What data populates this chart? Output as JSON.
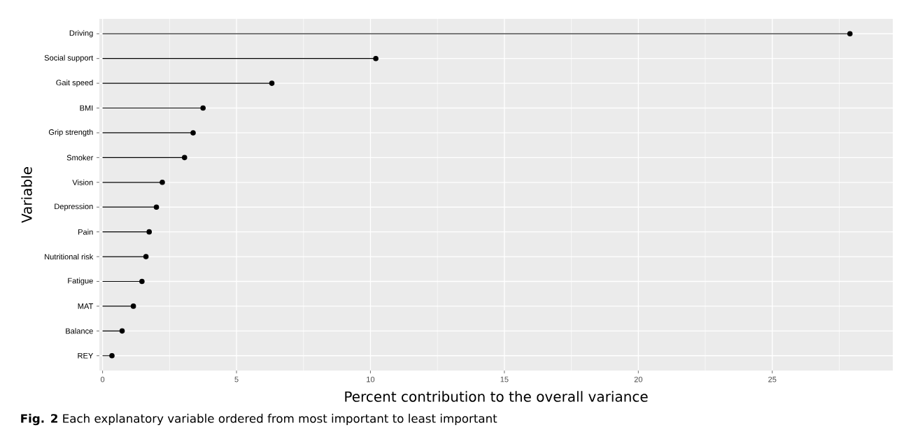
{
  "chart_data": {
    "type": "lollipop",
    "orientation": "horizontal",
    "categories": [
      "Driving",
      "Social support",
      "Gait speed",
      "BMI",
      "Grip strength",
      "Smoker",
      "Vision",
      "Depression",
      "Pain",
      "Nutritional risk",
      "Fatigue",
      "MAT",
      "Balance",
      "REY"
    ],
    "values": [
      27.9,
      10.2,
      6.32,
      3.75,
      3.38,
      3.06,
      2.23,
      2.01,
      1.74,
      1.62,
      1.47,
      1.15,
      0.73,
      0.35
    ],
    "color": "#000000",
    "marker": "circle",
    "grid": true,
    "xlabel": "Percent contribution to the overall variance",
    "ylabel": "Variable",
    "xlim": [
      -0.12,
      29.5
    ],
    "xticks": [
      0,
      5,
      10,
      15,
      20,
      25
    ],
    "annotations": [
      "**Fig. 2** Each explanatory variable ordered from most important to least important"
    ]
  }
}
